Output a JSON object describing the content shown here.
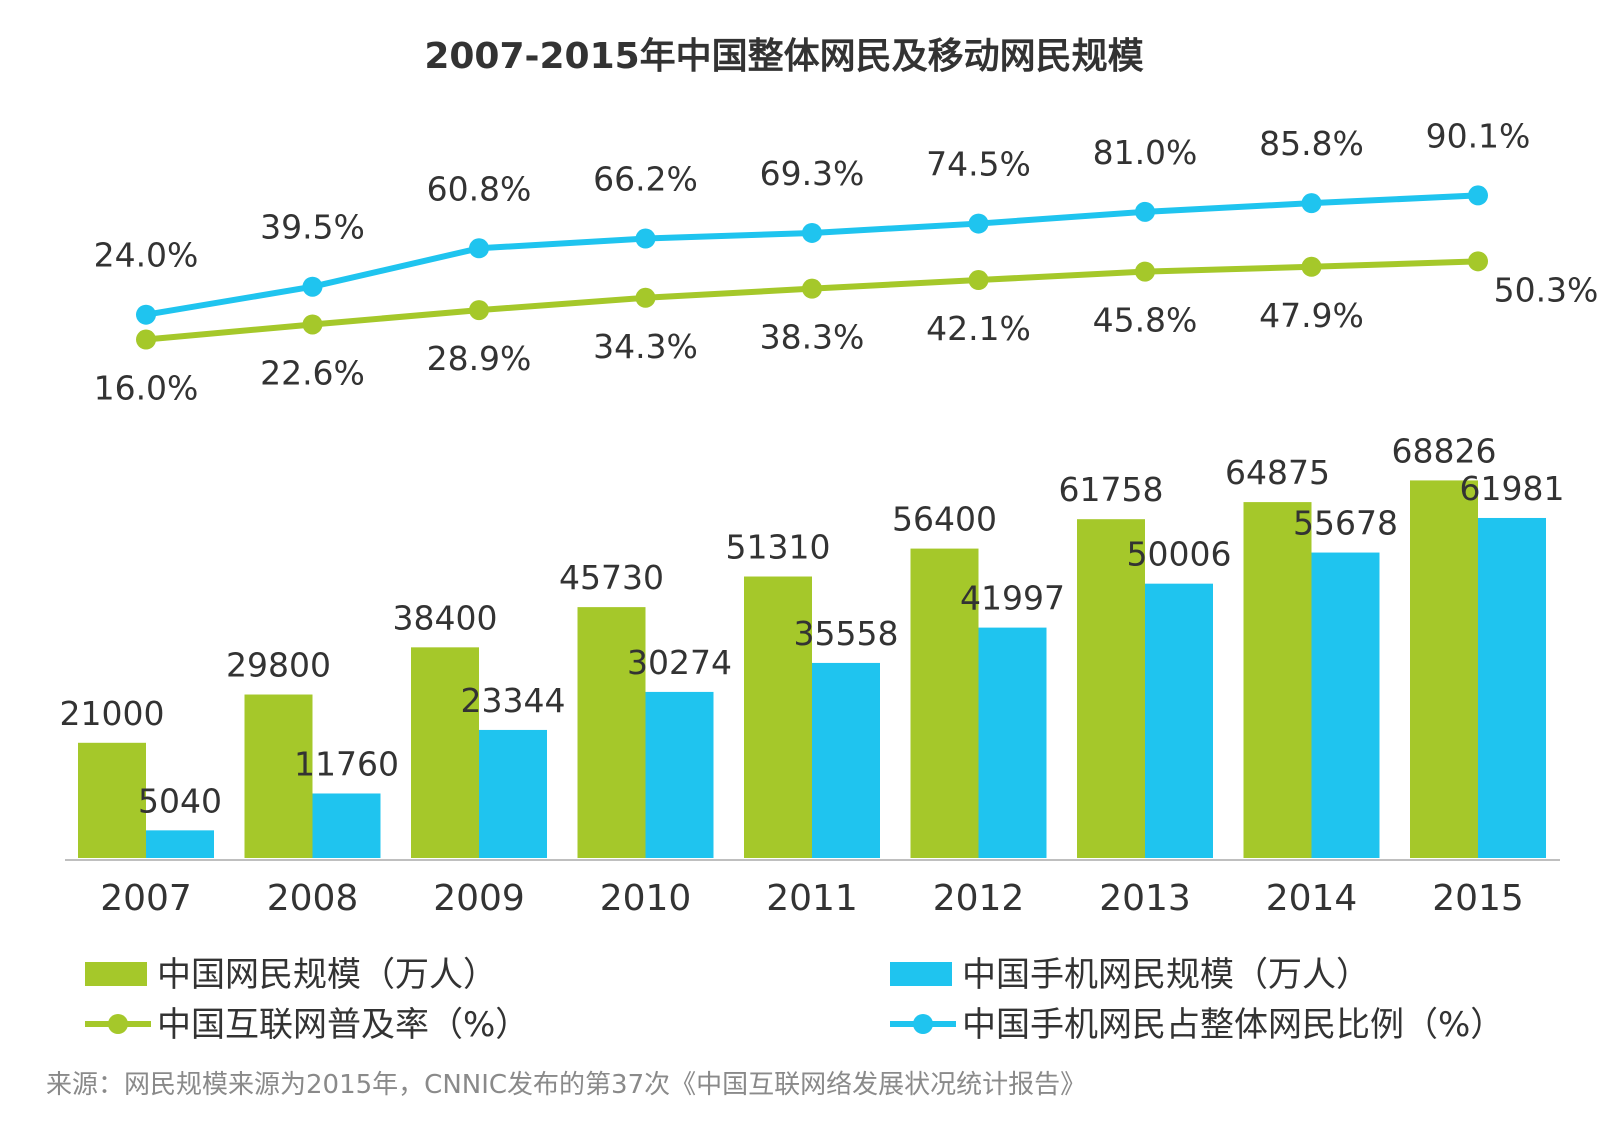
{
  "chart_data": {
    "type": "bar+line",
    "title": "2007-2015年中国整体网民及移动网民规模",
    "categories": [
      "2007",
      "2008",
      "2009",
      "2010",
      "2011",
      "2012",
      "2013",
      "2014",
      "2015"
    ],
    "bar_series": [
      {
        "name": "中国网民规模（万人）",
        "color": "#a5c82a",
        "values": [
          21000,
          29800,
          38400,
          45730,
          51310,
          56400,
          61758,
          64875,
          68826
        ]
      },
      {
        "name": "中国手机网民规模（万人）",
        "color": "#1fc4ef",
        "values": [
          5040,
          11760,
          23344,
          30274,
          35558,
          41997,
          50006,
          55678,
          61981
        ]
      }
    ],
    "line_series": [
      {
        "name": "中国互联网普及率（%）",
        "color": "#a5c82a",
        "values": [
          16.0,
          22.6,
          28.9,
          34.3,
          38.3,
          42.1,
          45.8,
          47.9,
          50.3
        ],
        "labels": [
          "16.0%",
          "22.6%",
          "28.9%",
          "34.3%",
          "38.3%",
          "42.1%",
          "45.8%",
          "47.9%",
          "50.3%"
        ]
      },
      {
        "name": "中国手机网民占整体网民比例（%）",
        "color": "#1fc4ef",
        "values": [
          24.0,
          39.5,
          60.8,
          66.2,
          69.3,
          74.5,
          81.0,
          85.8,
          90.1
        ],
        "labels": [
          "24.0%",
          "39.5%",
          "60.8%",
          "66.2%",
          "69.3%",
          "74.5%",
          "81.0%",
          "85.8%",
          "90.1%"
        ]
      }
    ],
    "bar_ylim": [
      0,
      70000
    ],
    "line_ylim": [
      0,
      100
    ],
    "legend": [
      {
        "label": "中国网民规模（万人）",
        "kind": "bar",
        "series": 0
      },
      {
        "label": "中国手机网民规模（万人）",
        "kind": "bar",
        "series": 1
      },
      {
        "label": "中国互联网普及率（%）",
        "kind": "line",
        "series": 0
      },
      {
        "label": "中国手机网民占整体网民比例（%）",
        "kind": "line",
        "series": 1
      }
    ]
  },
  "source": "来源：网民规模来源为2015年，CNNIC发布的第37次《中国互联网络发展状况统计报告》"
}
